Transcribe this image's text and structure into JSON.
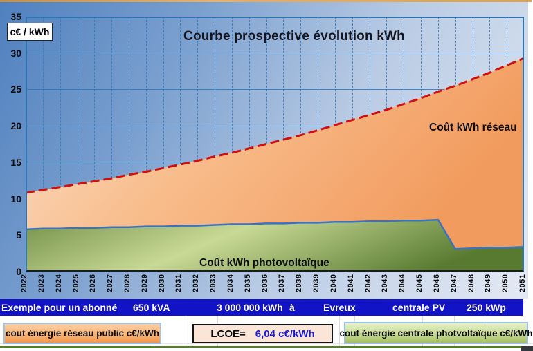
{
  "title": "Courbe prospective évolution kWh",
  "y_axis": {
    "unit_label": "c€ / kWh",
    "ticks": [
      35,
      30,
      25,
      20,
      15,
      10,
      5,
      0
    ]
  },
  "area_labels": {
    "reseau": "Coût kWh réseau",
    "pv": "Coût kWh photovoltaïque"
  },
  "banner": {
    "segments": [
      "Exemple pour un abonné",
      "650 kVA",
      "3 000 000 kWh",
      "à",
      "Evreux",
      "centrale PV",
      "250 kWp"
    ]
  },
  "legend": {
    "reseau": "cout énergie réseau public c€/kWh",
    "lcoe_label": "LCOE=",
    "lcoe_value": "6,04 c€/kWh",
    "pv": "cout énergie centrale photvoltaïque c€/kWh"
  },
  "colors": {
    "banner_blue": "#1113c5",
    "red_dashed_line": "#d01010",
    "pv_top_line": "#3a72c0",
    "grid_blue": "#2e75b6",
    "orange_fill_light": "#fbe0cb",
    "orange_fill_dark": "#f29b5e",
    "green_fill_light": "#c8d996",
    "green_fill_dark": "#587a30",
    "lcoe_value_blue": "#1b1bd6"
  },
  "chart_data": {
    "type": "area",
    "title": "Courbe prospective évolution kWh",
    "ylabel": "c€ / kWh",
    "ylim": [
      0,
      35
    ],
    "grid": "horizontal solid every 5, vertical dashed every year",
    "legend_position": "labels inside areas",
    "x": [
      2022,
      2023,
      2024,
      2025,
      2026,
      2027,
      2028,
      2029,
      2030,
      2031,
      2032,
      2033,
      2034,
      2035,
      2036,
      2037,
      2038,
      2039,
      2040,
      2041,
      2042,
      2043,
      2044,
      2045,
      2046,
      2047,
      2048,
      2049,
      2050,
      2051
    ],
    "series": [
      {
        "name": "Coût kWh réseau",
        "values": [
          10.8,
          11.2,
          11.6,
          12.0,
          12.4,
          12.8,
          13.3,
          13.7,
          14.2,
          14.7,
          15.2,
          15.8,
          16.3,
          16.9,
          17.5,
          18.1,
          18.7,
          19.4,
          20.1,
          20.8,
          21.5,
          22.2,
          23.0,
          23.8,
          24.7,
          25.5,
          26.4,
          27.3,
          28.3,
          29.3
        ]
      },
      {
        "name": "Coût kWh photovoltaïque",
        "values": [
          5.8,
          5.9,
          5.9,
          6.0,
          6.0,
          6.1,
          6.1,
          6.2,
          6.2,
          6.3,
          6.3,
          6.4,
          6.5,
          6.5,
          6.6,
          6.6,
          6.7,
          6.7,
          6.8,
          6.8,
          6.9,
          6.9,
          7.0,
          7.0,
          7.1,
          3.1,
          3.2,
          3.3,
          3.3,
          3.4
        ]
      }
    ]
  }
}
